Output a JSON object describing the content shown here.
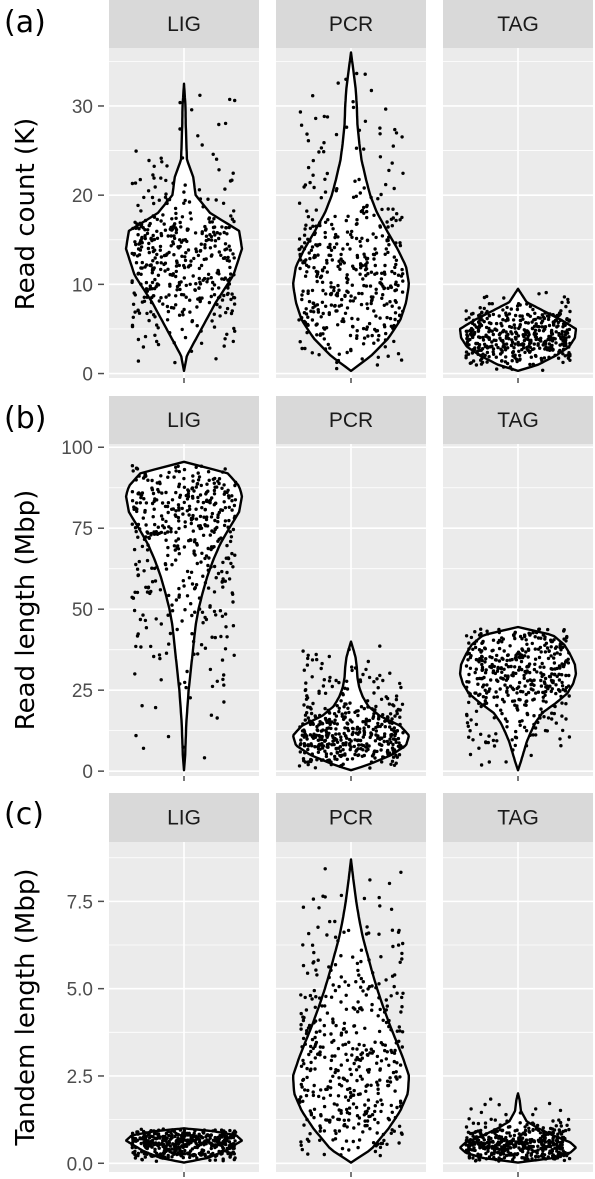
{
  "chart_data": [
    {
      "panel": "(a)",
      "type": "violin",
      "ylabel": "Read count (K)",
      "ylim": [
        -0.5,
        36.5
      ],
      "yticks": [
        0,
        10,
        20,
        30
      ],
      "yticklabels": [
        "0",
        "10",
        "20",
        "30"
      ],
      "facets": [
        {
          "name": "LIG",
          "min": 0.3,
          "max": 32.5,
          "center": 14.5,
          "density": [
            [
              0.3,
              0.0
            ],
            [
              2,
              0.05
            ],
            [
              5,
              0.3
            ],
            [
              8,
              0.55
            ],
            [
              11,
              0.85
            ],
            [
              14,
              1.0
            ],
            [
              16,
              0.95
            ],
            [
              18,
              0.45
            ],
            [
              20,
              0.2
            ],
            [
              22,
              0.16
            ],
            [
              24,
              0.05
            ],
            [
              26,
              0.04
            ],
            [
              28,
              0.03
            ],
            [
              30,
              0.025
            ],
            [
              32.5,
              0.0
            ]
          ]
        },
        {
          "name": "PCR",
          "min": 0.3,
          "max": 36.0,
          "center": 11.0,
          "density": [
            [
              0.3,
              0.0
            ],
            [
              2,
              0.35
            ],
            [
              4,
              0.65
            ],
            [
              6,
              0.85
            ],
            [
              8,
              0.95
            ],
            [
              10,
              1.0
            ],
            [
              12,
              0.95
            ],
            [
              14,
              0.8
            ],
            [
              16,
              0.62
            ],
            [
              18,
              0.45
            ],
            [
              20,
              0.33
            ],
            [
              22,
              0.25
            ],
            [
              24,
              0.18
            ],
            [
              26,
              0.14
            ],
            [
              28,
              0.11
            ],
            [
              30,
              0.1
            ],
            [
              32,
              0.08
            ],
            [
              34,
              0.04
            ],
            [
              36,
              0.0
            ]
          ]
        },
        {
          "name": "TAG",
          "min": 0.3,
          "max": 9.5,
          "center": 4.5,
          "density": [
            [
              0.3,
              0.0
            ],
            [
              1,
              0.35
            ],
            [
              2,
              0.65
            ],
            [
              3,
              0.88
            ],
            [
              4,
              0.98
            ],
            [
              5,
              1.0
            ],
            [
              6,
              0.75
            ],
            [
              7,
              0.45
            ],
            [
              8,
              0.15
            ],
            [
              9,
              0.05
            ],
            [
              9.5,
              0.0
            ]
          ]
        }
      ]
    },
    {
      "panel": "(b)",
      "type": "violin",
      "ylabel": "Read length (Mbp)",
      "ylim": [
        -1.5,
        101
      ],
      "yticks": [
        0,
        25,
        50,
        75,
        100
      ],
      "yticklabels": [
        "0",
        "25",
        "50",
        "75",
        "100"
      ],
      "facets": [
        {
          "name": "LIG",
          "min": 0.3,
          "max": 95.5,
          "center": 82.0,
          "density": [
            [
              0.3,
              0.0
            ],
            [
              5,
              0.02
            ],
            [
              10,
              0.03
            ],
            [
              15,
              0.04
            ],
            [
              20,
              0.06
            ],
            [
              25,
              0.08
            ],
            [
              30,
              0.11
            ],
            [
              35,
              0.14
            ],
            [
              40,
              0.17
            ],
            [
              45,
              0.2
            ],
            [
              50,
              0.25
            ],
            [
              55,
              0.32
            ],
            [
              60,
              0.4
            ],
            [
              65,
              0.5
            ],
            [
              70,
              0.62
            ],
            [
              75,
              0.78
            ],
            [
              80,
              0.95
            ],
            [
              85,
              1.0
            ],
            [
              88,
              0.95
            ],
            [
              92,
              0.75
            ],
            [
              95.5,
              0.0
            ]
          ]
        },
        {
          "name": "PCR",
          "min": 0.3,
          "max": 40.0,
          "center": 12.0,
          "density": [
            [
              0.3,
              0.0
            ],
            [
              2,
              0.3
            ],
            [
              5,
              0.7
            ],
            [
              8,
              0.95
            ],
            [
              11,
              1.0
            ],
            [
              14,
              0.85
            ],
            [
              17,
              0.5
            ],
            [
              20,
              0.3
            ],
            [
              23,
              0.2
            ],
            [
              26,
              0.14
            ],
            [
              29,
              0.11
            ],
            [
              32,
              0.1
            ],
            [
              35,
              0.08
            ],
            [
              37,
              0.05
            ],
            [
              40,
              0.0
            ]
          ]
        },
        {
          "name": "TAG",
          "min": 0.3,
          "max": 44.5,
          "center": 28.0,
          "density": [
            [
              0.3,
              0.0
            ],
            [
              3,
              0.05
            ],
            [
              6,
              0.1
            ],
            [
              9,
              0.15
            ],
            [
              12,
              0.22
            ],
            [
              15,
              0.3
            ],
            [
              18,
              0.42
            ],
            [
              21,
              0.65
            ],
            [
              24,
              0.85
            ],
            [
              27,
              0.95
            ],
            [
              30,
              1.0
            ],
            [
              33,
              0.98
            ],
            [
              36,
              0.9
            ],
            [
              39,
              0.8
            ],
            [
              42,
              0.6
            ],
            [
              44.5,
              0.0
            ]
          ]
        }
      ]
    },
    {
      "panel": "(c)",
      "type": "violin",
      "ylabel": "Tandem length (Mbp)",
      "ylim": [
        -0.25,
        9.2
      ],
      "yticks": [
        0.0,
        2.5,
        5.0,
        7.5
      ],
      "yticklabels": [
        "0.0",
        "2.5",
        "5.0",
        "7.5"
      ],
      "facets": [
        {
          "name": "LIG",
          "min": 0.02,
          "max": 1.0,
          "center": 0.65,
          "density": [
            [
              0.02,
              0.0
            ],
            [
              0.15,
              0.4
            ],
            [
              0.35,
              0.7
            ],
            [
              0.5,
              0.85
            ],
            [
              0.65,
              1.0
            ],
            [
              0.8,
              0.9
            ],
            [
              0.92,
              0.5
            ],
            [
              1.0,
              0.0
            ]
          ]
        },
        {
          "name": "PCR",
          "min": 0.02,
          "max": 8.7,
          "center": 2.2,
          "density": [
            [
              0.02,
              0.0
            ],
            [
              0.4,
              0.35
            ],
            [
              1.0,
              0.65
            ],
            [
              1.5,
              0.85
            ],
            [
              2.0,
              0.98
            ],
            [
              2.5,
              1.0
            ],
            [
              3.0,
              0.9
            ],
            [
              3.5,
              0.78
            ],
            [
              4.0,
              0.66
            ],
            [
              4.5,
              0.55
            ],
            [
              5.0,
              0.45
            ],
            [
              5.5,
              0.36
            ],
            [
              6.0,
              0.28
            ],
            [
              6.5,
              0.2
            ],
            [
              7.0,
              0.14
            ],
            [
              7.5,
              0.09
            ],
            [
              8.0,
              0.05
            ],
            [
              8.7,
              0.0
            ]
          ]
        },
        {
          "name": "TAG",
          "min": 0.02,
          "max": 2.0,
          "center": 0.4,
          "density": [
            [
              0.02,
              0.0
            ],
            [
              0.15,
              0.6
            ],
            [
              0.3,
              0.9
            ],
            [
              0.45,
              1.0
            ],
            [
              0.6,
              0.9
            ],
            [
              0.8,
              0.6
            ],
            [
              1.0,
              0.35
            ],
            [
              1.2,
              0.15
            ],
            [
              1.5,
              0.05
            ],
            [
              1.8,
              0.03
            ],
            [
              2.0,
              0.0
            ]
          ]
        }
      ]
    }
  ],
  "colors": {
    "panel_bg": "#ebebeb",
    "strip_bg": "#d9d9d9",
    "grid": "#ffffff",
    "violin_fill": "#ffffff",
    "violin_stroke": "#000000",
    "point": "#000000"
  }
}
